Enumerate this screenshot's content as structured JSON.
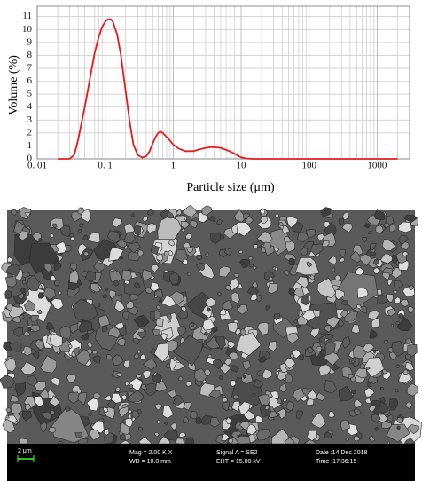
{
  "chart_data": {
    "type": "line",
    "y_label": "Volume (%)",
    "x_label": "Particle size  (μm)",
    "x": [
      0.02,
      0.03,
      0.035,
      0.04,
      0.05,
      0.06,
      0.07,
      0.08,
      0.09,
      0.1,
      0.11,
      0.12,
      0.13,
      0.15,
      0.17,
      0.2,
      0.23,
      0.26,
      0.3,
      0.35,
      0.4,
      0.45,
      0.5,
      0.55,
      0.6,
      0.65,
      0.7,
      0.8,
      0.9,
      1.0,
      1.2,
      1.5,
      2.0,
      2.5,
      3.0,
      3.5,
      4.0,
      5.0,
      6.0,
      7.0,
      8.0,
      9.0,
      10.0,
      12.0,
      15.0,
      30.0,
      100.0,
      500.0,
      2000.0
    ],
    "values": [
      0,
      0,
      0.3,
      1.5,
      4,
      6.3,
      8.2,
      9.4,
      10.2,
      10.6,
      10.8,
      10.8,
      10.6,
      9.6,
      8.0,
      5.2,
      2.8,
      1.1,
      0.3,
      0.1,
      0.2,
      0.6,
      1.2,
      1.7,
      2.0,
      2.1,
      2.0,
      1.7,
      1.4,
      1.1,
      0.8,
      0.6,
      0.6,
      0.75,
      0.85,
      0.9,
      0.9,
      0.85,
      0.7,
      0.55,
      0.4,
      0.25,
      0.12,
      0.03,
      0,
      0,
      0,
      0,
      0
    ],
    "color": "#e8191e",
    "xlim": [
      0.01,
      3000
    ],
    "x_log": true,
    "xticks": [
      {
        "value": 0.01,
        "label": "0. 01"
      },
      {
        "value": 0.1,
        "label": "0. 1"
      },
      1,
      10,
      100,
      1000
    ],
    "ylim": [
      0,
      11.8
    ],
    "yticks": [
      0,
      1,
      2,
      3,
      4,
      5,
      6,
      7,
      8,
      9,
      10,
      11
    ],
    "grid": true
  },
  "micrograph": {
    "scale_bar": "2 μm",
    "mag": "Mag =   2.00 K X",
    "wd": "WD = 10.0 mm",
    "signal": "Signal A = SE2",
    "eht": "EHT = 15.00 kV",
    "date": "Date :14 Dec 2018",
    "time": "Time :17:36:15"
  }
}
